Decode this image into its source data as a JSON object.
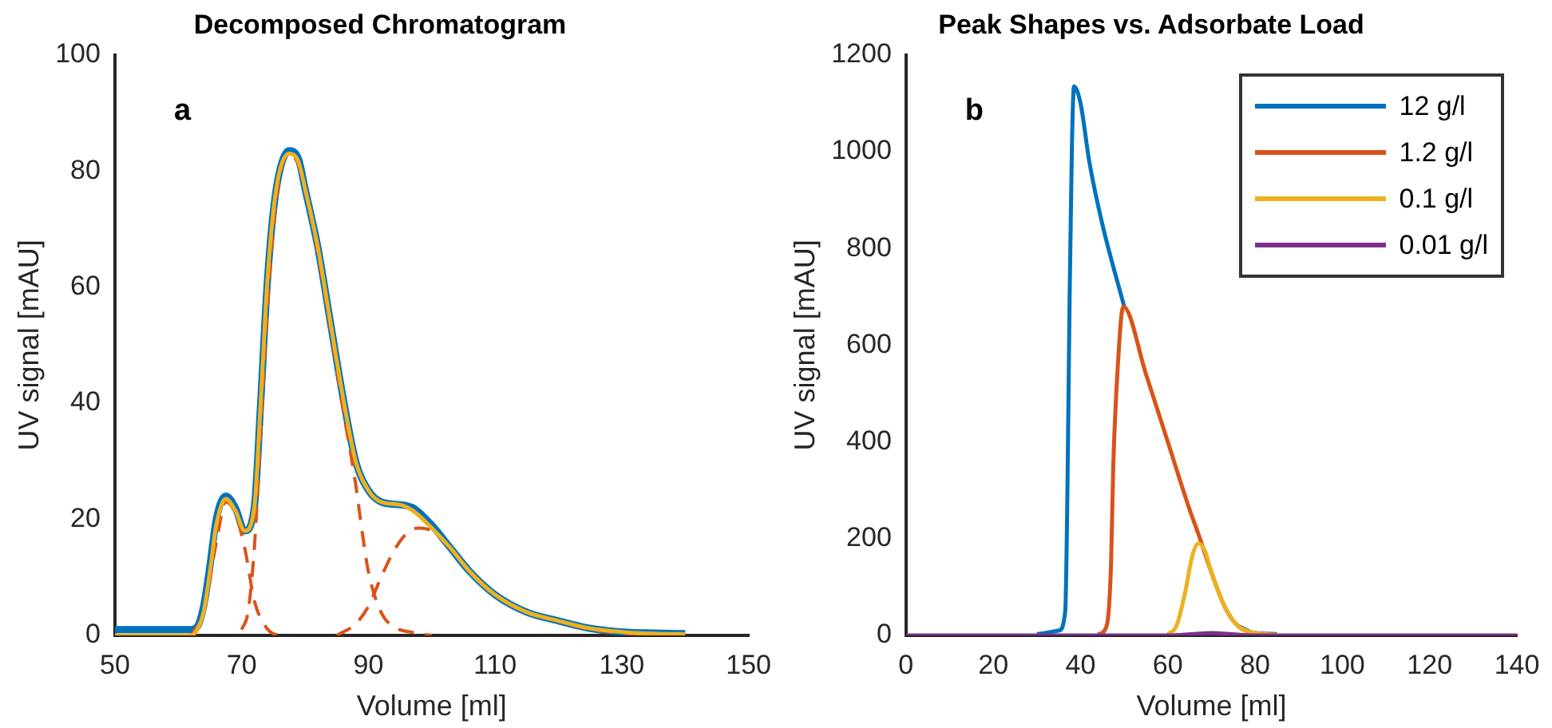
{
  "chart_data": [
    {
      "type": "line",
      "title": "Decomposed Chromatogram",
      "xlabel": "Volume [ml]",
      "ylabel": "UV signal [mAU]",
      "annotations": [
        "a"
      ],
      "xlim": [
        50,
        150
      ],
      "xticks": [
        50,
        70,
        90,
        110,
        130,
        150
      ],
      "ylim": [
        0,
        100
      ],
      "yticks": [
        0,
        20,
        40,
        60,
        80,
        100
      ],
      "grid": false,
      "legend": false,
      "series": [
        {
          "color": "#0072bd",
          "x": [
            50,
            62,
            63,
            64,
            65,
            66,
            67.5,
            69,
            70.5,
            72,
            73,
            74,
            75,
            76,
            77.5,
            79,
            80,
            82,
            84,
            86,
            88,
            90,
            92,
            95,
            97,
            100,
            103,
            106,
            110,
            115,
            120,
            125,
            130,
            135,
            140
          ],
          "values": [
            1,
            1,
            1.5,
            5,
            12,
            20,
            24,
            22,
            18,
            22,
            40,
            60,
            73,
            80,
            83.5,
            82,
            77,
            67,
            54,
            41,
            30,
            25,
            23,
            22.5,
            22,
            19,
            15,
            11,
            7,
            4,
            2.5,
            1.2,
            0.6,
            0.4,
            0.3
          ]
        },
        {
          "color": "#d95319",
          "line_style": "dashed",
          "x": [
            62,
            64,
            66,
            67.5,
            69,
            70.5,
            72,
            73.5,
            75,
            77
          ],
          "values": [
            0,
            4,
            16,
            23,
            21,
            15,
            6,
            2,
            0.3,
            0
          ]
        },
        {
          "color": "#d95319",
          "line_style": "dashed",
          "x": [
            70,
            71,
            72,
            73,
            74,
            75,
            76,
            77.5,
            79,
            80,
            82,
            84,
            86,
            88,
            89,
            90,
            92,
            94,
            97,
            100
          ],
          "values": [
            1,
            4,
            15,
            35,
            55,
            70,
            79,
            83,
            81,
            77,
            66,
            53,
            39,
            26,
            18,
            11,
            4,
            1.5,
            0.5,
            0
          ]
        },
        {
          "color": "#d95319",
          "line_style": "dashed",
          "x": [
            85,
            88,
            90,
            92,
            94,
            96,
            98,
            100,
            103,
            106,
            110,
            115,
            120,
            125,
            130,
            135
          ],
          "values": [
            0,
            2,
            5,
            10,
            14.5,
            17.5,
            18.5,
            18,
            15,
            11,
            7,
            4,
            2.5,
            1,
            0.4,
            0
          ]
        },
        {
          "color": "#edb120",
          "x": [
            50,
            62,
            63,
            64,
            65,
            66,
            67.5,
            69,
            70.5,
            72,
            73,
            74,
            75,
            76,
            77.5,
            79,
            80,
            82,
            84,
            86,
            88,
            90,
            92,
            95,
            97,
            100,
            103,
            106,
            110,
            115,
            120,
            125,
            130,
            135,
            140
          ],
          "values": [
            0,
            0,
            1,
            4,
            11,
            19,
            23.5,
            21.5,
            18,
            22,
            40,
            60,
            73,
            80,
            83,
            81.5,
            77,
            67,
            54,
            41,
            30,
            25,
            23,
            22.5,
            21.5,
            18.5,
            15,
            11,
            7,
            4,
            2.5,
            1.2,
            0.6,
            0.3,
            0.2
          ]
        }
      ]
    },
    {
      "type": "line",
      "title": "Peak Shapes vs. Adsorbate Load",
      "xlabel": "Volume [ml]",
      "ylabel": "UV signal [mAU]",
      "annotations": [
        "b"
      ],
      "xlim": [
        0,
        140
      ],
      "xticks": [
        0,
        20,
        40,
        60,
        80,
        100,
        120,
        140
      ],
      "ylim": [
        0,
        1200
      ],
      "yticks": [
        0,
        200,
        400,
        600,
        800,
        1000,
        1200
      ],
      "grid": false,
      "legend": "top right",
      "series": [
        {
          "name": "12 g/l",
          "color": "#0072bd",
          "x": [
            30,
            35,
            36.5,
            37,
            37.5,
            38,
            38.5,
            40,
            42,
            45,
            50,
            55,
            60,
            65,
            67,
            70,
            73,
            76,
            80,
            85
          ],
          "values": [
            3,
            10,
            50,
            300,
            700,
            1000,
            1135,
            1100,
            980,
            850,
            680,
            null,
            null,
            null,
            null,
            null,
            null,
            20,
            5,
            3
          ]
        },
        {
          "name": "1.2 g/l",
          "color": "#d95319",
          "x": [
            44,
            46,
            47,
            47.5,
            48.5,
            49.8,
            55,
            60,
            65,
            67,
            70,
            73,
            76,
            80,
            85
          ],
          "values": [
            2,
            20,
            150,
            350,
            550,
            680,
            540,
            400,
            260,
            210,
            130,
            60,
            20,
            5,
            2
          ]
        },
        {
          "name": "0.1 g/l",
          "color": "#edb120",
          "x": [
            60,
            62,
            64,
            65.5,
            67,
            68.5,
            70,
            73,
            76,
            80,
            85
          ],
          "values": [
            2,
            20,
            90,
            160,
            190,
            175,
            130,
            60,
            20,
            5,
            1
          ]
        },
        {
          "name": "0.01 g/l",
          "color": "#7e2f8e",
          "x": [
            0,
            60,
            66,
            70,
            74,
            80,
            140
          ],
          "values": [
            0,
            0,
            3,
            5,
            3,
            0,
            0
          ]
        }
      ]
    }
  ]
}
